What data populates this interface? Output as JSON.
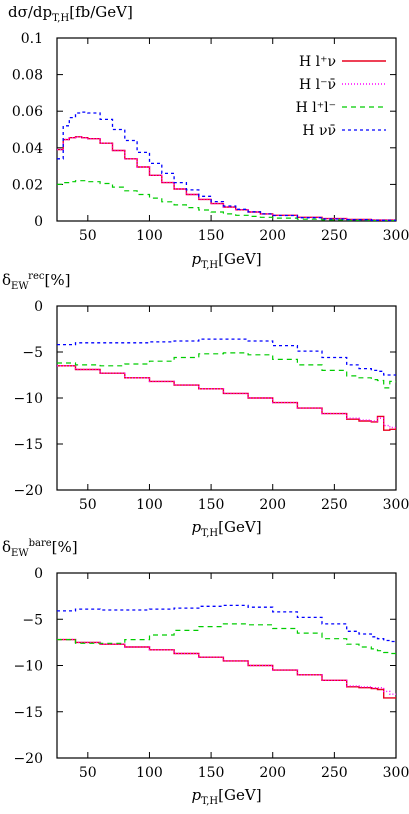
{
  "colors": {
    "Hlnu": "#e8001e",
    "Hlnubar": "#ff00ff",
    "Hll": "#00cc00",
    "Hnunu": "#0000ff"
  },
  "chart_data": [
    {
      "type": "line",
      "ylabel": "dσ/dp_T,H[fb/GeV]",
      "xlabel": "p_T,H[GeV]",
      "xlim": [
        25,
        300
      ],
      "ylim": [
        0,
        0.1
      ],
      "xticks": [
        "50",
        "100",
        "150",
        "200",
        "250",
        "300"
      ],
      "yticks": [
        "0",
        "0.02",
        "0.04",
        "0.06",
        "0.08",
        "0.1"
      ],
      "legend_position": "top-right",
      "x": [
        25,
        30,
        35,
        40,
        45,
        50,
        60,
        70,
        80,
        90,
        100,
        110,
        120,
        130,
        140,
        150,
        160,
        170,
        180,
        190,
        200,
        220,
        240,
        260,
        280,
        300
      ],
      "series": [
        {
          "name": "H l⁺ν",
          "key": "Hlnu",
          "dash": "",
          "width": 1.4,
          "values": [
            0.039,
            0.0445,
            0.0455,
            0.046,
            0.0455,
            0.045,
            0.0425,
            0.0385,
            0.034,
            0.0295,
            0.025,
            0.021,
            0.0175,
            0.0145,
            0.0118,
            0.0095,
            0.0076,
            0.0061,
            0.0049,
            0.0039,
            0.0031,
            0.002,
            0.0013,
            0.0008,
            0.0005,
            0.0003
          ]
        },
        {
          "name": "H l⁻ν̄",
          "key": "Hlnubar",
          "dash": "1,2",
          "width": 1.4,
          "values": [
            0.039,
            0.0445,
            0.0455,
            0.046,
            0.0455,
            0.045,
            0.0425,
            0.0385,
            0.034,
            0.0295,
            0.025,
            0.021,
            0.0175,
            0.0145,
            0.0118,
            0.0095,
            0.0076,
            0.0061,
            0.0049,
            0.0039,
            0.0031,
            0.002,
            0.0013,
            0.0008,
            0.0005,
            0.0003
          ]
        },
        {
          "name": "H l⁺l⁻",
          "key": "Hll",
          "dash": "5,4",
          "width": 1.2,
          "values": [
            0.02,
            0.021,
            0.0215,
            0.022,
            0.022,
            0.0215,
            0.0205,
            0.0185,
            0.0165,
            0.0145,
            0.0125,
            0.0105,
            0.0088,
            0.0073,
            0.006,
            0.0049,
            0.0039,
            0.0031,
            0.0025,
            0.002,
            0.0016,
            0.001,
            0.0006,
            0.0004,
            0.0002,
            0.0001
          ]
        },
        {
          "name": "H νν̄",
          "key": "Hnunu",
          "dash": "3,3",
          "width": 1.3,
          "values": [
            0.034,
            0.052,
            0.0565,
            0.059,
            0.0595,
            0.059,
            0.0555,
            0.05,
            0.044,
            0.0375,
            0.0315,
            0.026,
            0.021,
            0.017,
            0.0135,
            0.0106,
            0.0082,
            0.0064,
            0.005,
            0.0039,
            0.003,
            0.0018,
            0.0011,
            0.0007,
            0.0004,
            0.0002
          ]
        }
      ]
    },
    {
      "type": "line",
      "ylabel": "δ_EW^rec[%]",
      "xlabel": "p_T,H[GeV]",
      "xlim": [
        25,
        300
      ],
      "ylim": [
        -20,
        0
      ],
      "xticks": [
        "50",
        "100",
        "150",
        "200",
        "250",
        "300"
      ],
      "yticks": [
        "0",
        "−5",
        "−10",
        "−15",
        "−20"
      ],
      "x": [
        25,
        40,
        60,
        80,
        100,
        120,
        140,
        160,
        180,
        200,
        220,
        240,
        260,
        270,
        280,
        285,
        290,
        295,
        300
      ],
      "series": [
        {
          "key": "Hlnu",
          "dash": "",
          "width": 1.4,
          "values": [
            -6.5,
            -6.9,
            -7.3,
            -7.8,
            -8.2,
            -8.6,
            -9.0,
            -9.5,
            -10.0,
            -10.5,
            -11.1,
            -11.7,
            -12.3,
            -12.5,
            -12.6,
            -12.0,
            -13.5,
            -13.4,
            -13.2
          ]
        },
        {
          "key": "Hlnubar",
          "dash": "1,2",
          "width": 1.4,
          "values": [
            -6.5,
            -6.9,
            -7.3,
            -7.8,
            -8.2,
            -8.6,
            -9.0,
            -9.5,
            -10.0,
            -10.5,
            -11.1,
            -11.7,
            -12.2,
            -12.4,
            -12.5,
            -12.2,
            -13.0,
            -13.2,
            -13.1
          ]
        },
        {
          "key": "Hll",
          "dash": "5,4",
          "width": 1.2,
          "values": [
            -6.2,
            -6.4,
            -6.5,
            -6.3,
            -6.0,
            -5.6,
            -5.2,
            -5.1,
            -5.3,
            -5.8,
            -6.4,
            -7.0,
            -7.6,
            -7.8,
            -8.0,
            -8.1,
            -8.9,
            -8.2,
            -8.3
          ]
        },
        {
          "key": "Hnunu",
          "dash": "3,3",
          "width": 1.3,
          "values": [
            -4.2,
            -4.0,
            -4.0,
            -4.0,
            -3.9,
            -3.8,
            -3.6,
            -3.6,
            -3.8,
            -4.3,
            -4.9,
            -5.6,
            -6.4,
            -6.8,
            -7.0,
            -7.1,
            -7.5,
            -7.5,
            -7.4
          ]
        }
      ]
    },
    {
      "type": "line",
      "ylabel": "δ_EW^bare[%]",
      "xlabel": "p_T,H[GeV]",
      "xlim": [
        25,
        300
      ],
      "ylim": [
        -20,
        0
      ],
      "xticks": [
        "50",
        "100",
        "150",
        "200",
        "250",
        "300"
      ],
      "yticks": [
        "0",
        "−5",
        "−10",
        "−15",
        "−20"
      ],
      "x": [
        25,
        40,
        60,
        80,
        100,
        120,
        140,
        160,
        180,
        200,
        220,
        240,
        260,
        270,
        280,
        285,
        290,
        295,
        300
      ],
      "series": [
        {
          "key": "Hlnu",
          "dash": "",
          "width": 1.4,
          "values": [
            -7.2,
            -7.5,
            -7.7,
            -8.0,
            -8.3,
            -8.7,
            -9.1,
            -9.5,
            -10.0,
            -10.5,
            -11.0,
            -11.6,
            -12.3,
            -12.4,
            -12.5,
            -12.6,
            -13.5,
            -13.5,
            -13.4
          ]
        },
        {
          "key": "Hlnubar",
          "dash": "1,2",
          "width": 1.4,
          "values": [
            -7.2,
            -7.5,
            -7.7,
            -8.0,
            -8.3,
            -8.7,
            -9.1,
            -9.5,
            -10.0,
            -10.5,
            -11.0,
            -11.6,
            -12.2,
            -12.3,
            -12.4,
            -12.4,
            -12.8,
            -13.1,
            -13.2
          ]
        },
        {
          "key": "Hll",
          "dash": "5,4",
          "width": 1.2,
          "values": [
            -7.2,
            -7.6,
            -7.6,
            -7.2,
            -6.7,
            -6.2,
            -5.8,
            -5.5,
            -5.6,
            -6.0,
            -6.5,
            -7.1,
            -7.7,
            -8.0,
            -8.2,
            -8.4,
            -8.6,
            -8.7,
            -8.8
          ]
        },
        {
          "key": "Hnunu",
          "dash": "3,3",
          "width": 1.3,
          "values": [
            -4.1,
            -3.9,
            -4.0,
            -4.0,
            -3.9,
            -3.8,
            -3.6,
            -3.5,
            -3.7,
            -4.2,
            -4.8,
            -5.5,
            -6.3,
            -6.6,
            -6.9,
            -7.1,
            -7.3,
            -7.4,
            -7.5
          ]
        }
      ]
    }
  ]
}
